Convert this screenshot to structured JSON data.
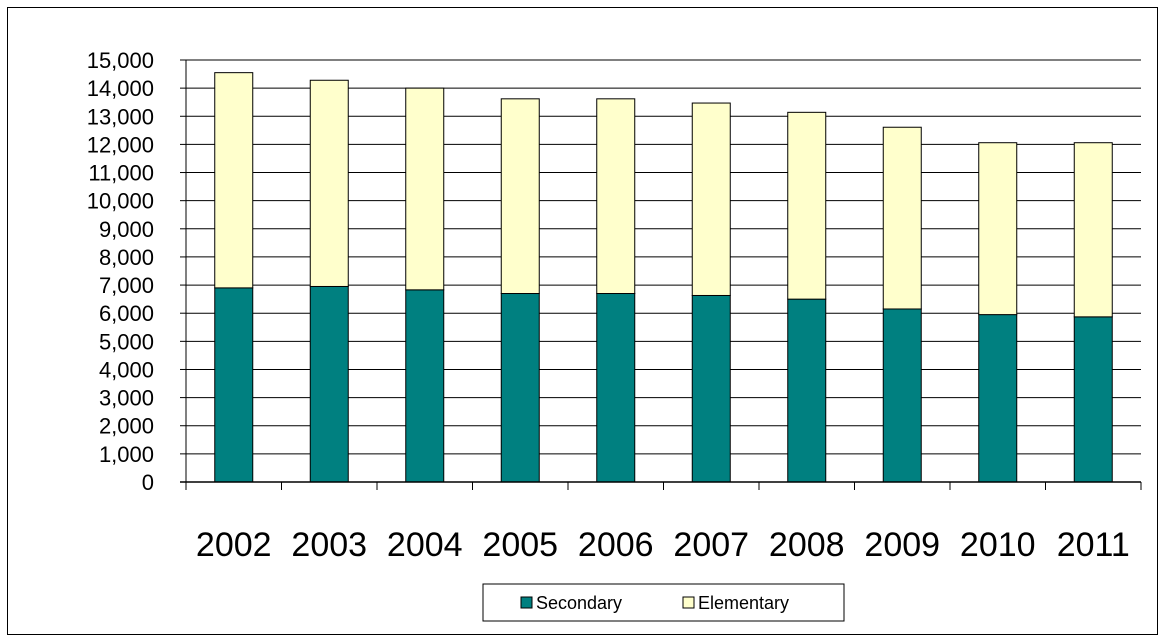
{
  "chart_data": {
    "type": "bar",
    "stacked": true,
    "categories": [
      "2002",
      "2003",
      "2004",
      "2005",
      "2006",
      "2007",
      "2008",
      "2009",
      "2010",
      "2011"
    ],
    "series": [
      {
        "name": "Secondary",
        "values": [
          6900,
          6950,
          6830,
          6700,
          6700,
          6630,
          6500,
          6150,
          5950,
          5870
        ],
        "color": "#008080"
      },
      {
        "name": "Elementary",
        "values": [
          7650,
          7330,
          7170,
          6920,
          6920,
          6840,
          6640,
          6460,
          6110,
          6190
        ],
        "color": "#FFFFCC"
      }
    ],
    "y_ticks": [
      "0",
      "1,000",
      "2,000",
      "3,000",
      "4,000",
      "5,000",
      "6,000",
      "7,000",
      "8,000",
      "9,000",
      "10,000",
      "11,000",
      "12,000",
      "13,000",
      "14,000",
      "15,000"
    ],
    "ylim": [
      0,
      15000
    ],
    "ystep": 1000,
    "grid": true,
    "legend_position": "bottom",
    "title": "",
    "xlabel": "",
    "ylabel": ""
  }
}
